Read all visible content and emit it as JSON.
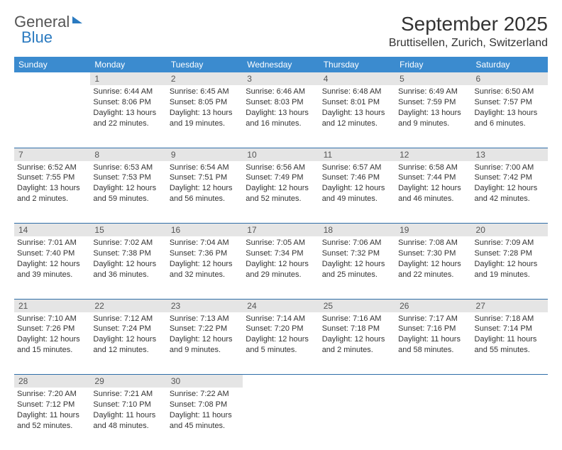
{
  "logo": {
    "part1": "General",
    "part2": "Blue"
  },
  "title": "September 2025",
  "location": "Bruttisellen, Zurich, Switzerland",
  "day_headers": [
    "Sunday",
    "Monday",
    "Tuesday",
    "Wednesday",
    "Thursday",
    "Friday",
    "Saturday"
  ],
  "colors": {
    "header_bg": "#3b8bcf",
    "header_text": "#ffffff",
    "daynum_bg": "#e5e5e5",
    "row_border": "#2f6ea8",
    "accent": "#2a7ac0"
  },
  "typography": {
    "title_fontsize": 28,
    "location_fontsize": 16,
    "header_fontsize": 12,
    "cell_fontsize": 11
  },
  "layout": {
    "columns": 7,
    "rows": 5,
    "starts_on": "Monday"
  },
  "days": [
    {
      "n": 1,
      "sunrise": "6:44 AM",
      "sunset": "8:06 PM",
      "daylight": "13 hours and 22 minutes."
    },
    {
      "n": 2,
      "sunrise": "6:45 AM",
      "sunset": "8:05 PM",
      "daylight": "13 hours and 19 minutes."
    },
    {
      "n": 3,
      "sunrise": "6:46 AM",
      "sunset": "8:03 PM",
      "daylight": "13 hours and 16 minutes."
    },
    {
      "n": 4,
      "sunrise": "6:48 AM",
      "sunset": "8:01 PM",
      "daylight": "13 hours and 12 minutes."
    },
    {
      "n": 5,
      "sunrise": "6:49 AM",
      "sunset": "7:59 PM",
      "daylight": "13 hours and 9 minutes."
    },
    {
      "n": 6,
      "sunrise": "6:50 AM",
      "sunset": "7:57 PM",
      "daylight": "13 hours and 6 minutes."
    },
    {
      "n": 7,
      "sunrise": "6:52 AM",
      "sunset": "7:55 PM",
      "daylight": "13 hours and 2 minutes."
    },
    {
      "n": 8,
      "sunrise": "6:53 AM",
      "sunset": "7:53 PM",
      "daylight": "12 hours and 59 minutes."
    },
    {
      "n": 9,
      "sunrise": "6:54 AM",
      "sunset": "7:51 PM",
      "daylight": "12 hours and 56 minutes."
    },
    {
      "n": 10,
      "sunrise": "6:56 AM",
      "sunset": "7:49 PM",
      "daylight": "12 hours and 52 minutes."
    },
    {
      "n": 11,
      "sunrise": "6:57 AM",
      "sunset": "7:46 PM",
      "daylight": "12 hours and 49 minutes."
    },
    {
      "n": 12,
      "sunrise": "6:58 AM",
      "sunset": "7:44 PM",
      "daylight": "12 hours and 46 minutes."
    },
    {
      "n": 13,
      "sunrise": "7:00 AM",
      "sunset": "7:42 PM",
      "daylight": "12 hours and 42 minutes."
    },
    {
      "n": 14,
      "sunrise": "7:01 AM",
      "sunset": "7:40 PM",
      "daylight": "12 hours and 39 minutes."
    },
    {
      "n": 15,
      "sunrise": "7:02 AM",
      "sunset": "7:38 PM",
      "daylight": "12 hours and 36 minutes."
    },
    {
      "n": 16,
      "sunrise": "7:04 AM",
      "sunset": "7:36 PM",
      "daylight": "12 hours and 32 minutes."
    },
    {
      "n": 17,
      "sunrise": "7:05 AM",
      "sunset": "7:34 PM",
      "daylight": "12 hours and 29 minutes."
    },
    {
      "n": 18,
      "sunrise": "7:06 AM",
      "sunset": "7:32 PM",
      "daylight": "12 hours and 25 minutes."
    },
    {
      "n": 19,
      "sunrise": "7:08 AM",
      "sunset": "7:30 PM",
      "daylight": "12 hours and 22 minutes."
    },
    {
      "n": 20,
      "sunrise": "7:09 AM",
      "sunset": "7:28 PM",
      "daylight": "12 hours and 19 minutes."
    },
    {
      "n": 21,
      "sunrise": "7:10 AM",
      "sunset": "7:26 PM",
      "daylight": "12 hours and 15 minutes."
    },
    {
      "n": 22,
      "sunrise": "7:12 AM",
      "sunset": "7:24 PM",
      "daylight": "12 hours and 12 minutes."
    },
    {
      "n": 23,
      "sunrise": "7:13 AM",
      "sunset": "7:22 PM",
      "daylight": "12 hours and 9 minutes."
    },
    {
      "n": 24,
      "sunrise": "7:14 AM",
      "sunset": "7:20 PM",
      "daylight": "12 hours and 5 minutes."
    },
    {
      "n": 25,
      "sunrise": "7:16 AM",
      "sunset": "7:18 PM",
      "daylight": "12 hours and 2 minutes."
    },
    {
      "n": 26,
      "sunrise": "7:17 AM",
      "sunset": "7:16 PM",
      "daylight": "11 hours and 58 minutes."
    },
    {
      "n": 27,
      "sunrise": "7:18 AM",
      "sunset": "7:14 PM",
      "daylight": "11 hours and 55 minutes."
    },
    {
      "n": 28,
      "sunrise": "7:20 AM",
      "sunset": "7:12 PM",
      "daylight": "11 hours and 52 minutes."
    },
    {
      "n": 29,
      "sunrise": "7:21 AM",
      "sunset": "7:10 PM",
      "daylight": "11 hours and 48 minutes."
    },
    {
      "n": 30,
      "sunrise": "7:22 AM",
      "sunset": "7:08 PM",
      "daylight": "11 hours and 45 minutes."
    }
  ],
  "labels": {
    "sunrise": "Sunrise:",
    "sunset": "Sunset:",
    "daylight": "Daylight:"
  }
}
